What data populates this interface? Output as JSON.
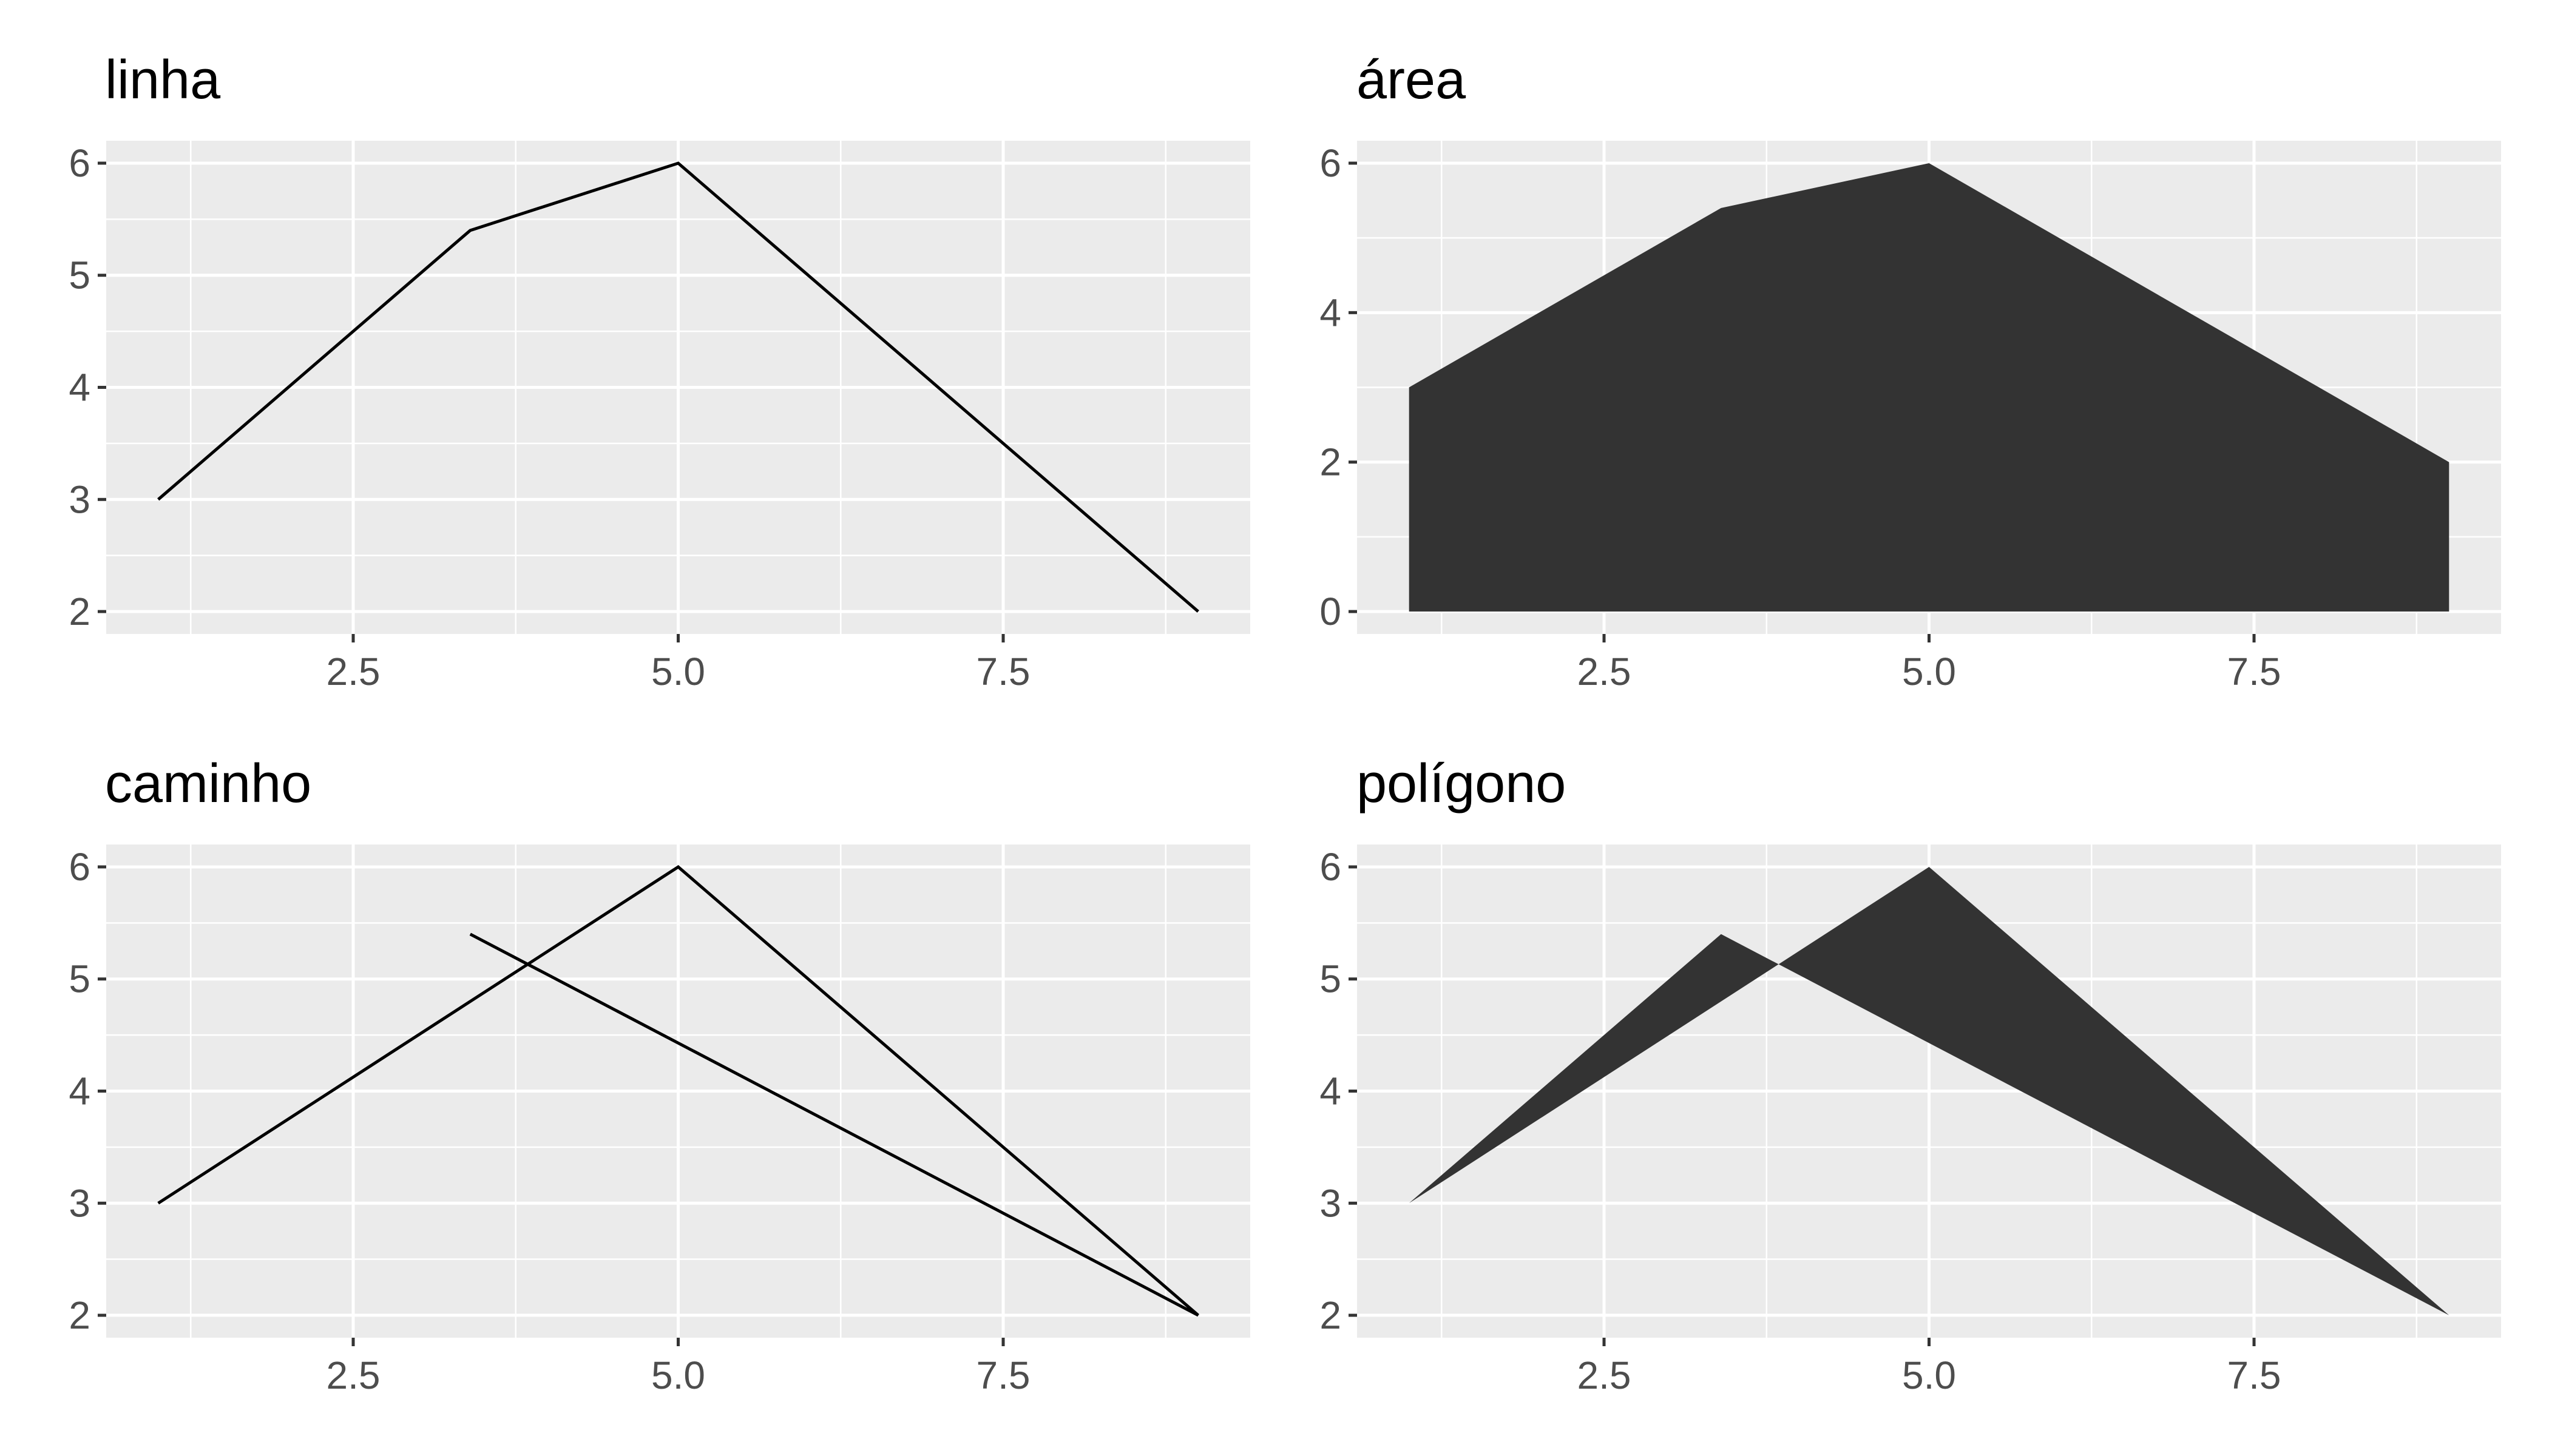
{
  "chart_data": [
    {
      "type": "line",
      "title": "linha",
      "xlabel": "",
      "ylabel": "",
      "x": [
        1.0,
        3.4,
        5.0,
        9.0
      ],
      "y": [
        3.0,
        5.4,
        6.0,
        2.0
      ],
      "xlim": [
        0.6,
        9.4
      ],
      "ylim": [
        1.8,
        6.2
      ],
      "xticks": [
        2.5,
        5.0,
        7.5
      ],
      "xtick_labels": [
        "2.5",
        "5.0",
        "7.5"
      ],
      "yticks": [
        2,
        3,
        4,
        5,
        6
      ],
      "ytick_labels": [
        "2",
        "3",
        "4",
        "5",
        "6"
      ],
      "grid": true,
      "colors": {
        "line": "#000000",
        "panel": "#ebebeb",
        "grid": "#ffffff"
      }
    },
    {
      "type": "area",
      "title": "área",
      "xlabel": "",
      "ylabel": "",
      "x": [
        1.0,
        3.4,
        5.0,
        9.0
      ],
      "y": [
        3.0,
        5.4,
        6.0,
        2.0
      ],
      "xlim": [
        0.6,
        9.4
      ],
      "ylim": [
        -0.3,
        6.3
      ],
      "xticks": [
        2.5,
        5.0,
        7.5
      ],
      "xtick_labels": [
        "2.5",
        "5.0",
        "7.5"
      ],
      "yticks": [
        0,
        2,
        4,
        6
      ],
      "ytick_labels": [
        "0",
        "2",
        "4",
        "6"
      ],
      "grid": true,
      "colors": {
        "fill": "#333333",
        "panel": "#ebebeb",
        "grid": "#ffffff"
      }
    },
    {
      "type": "line",
      "title": "caminho",
      "xlabel": "",
      "ylabel": "",
      "x": [
        1.0,
        5.0,
        9.0,
        3.4
      ],
      "y": [
        3.0,
        6.0,
        2.0,
        5.4
      ],
      "xlim": [
        0.6,
        9.4
      ],
      "ylim": [
        1.8,
        6.2
      ],
      "xticks": [
        2.5,
        5.0,
        7.5
      ],
      "xtick_labels": [
        "2.5",
        "5.0",
        "7.5"
      ],
      "yticks": [
        2,
        3,
        4,
        5,
        6
      ],
      "ytick_labels": [
        "2",
        "3",
        "4",
        "5",
        "6"
      ],
      "grid": true,
      "colors": {
        "line": "#000000",
        "panel": "#ebebeb",
        "grid": "#ffffff"
      }
    },
    {
      "type": "area",
      "title": "polígono",
      "xlabel": "",
      "ylabel": "",
      "x": [
        1.0,
        5.0,
        9.0,
        3.4
      ],
      "y": [
        3.0,
        6.0,
        2.0,
        5.4
      ],
      "xlim": [
        0.6,
        9.4
      ],
      "ylim": [
        1.8,
        6.2
      ],
      "xticks": [
        2.5,
        5.0,
        7.5
      ],
      "xtick_labels": [
        "2.5",
        "5.0",
        "7.5"
      ],
      "yticks": [
        2,
        3,
        4,
        5,
        6
      ],
      "ytick_labels": [
        "2",
        "3",
        "4",
        "5",
        "6"
      ],
      "grid": true,
      "colors": {
        "fill": "#333333",
        "panel": "#ebebeb",
        "grid": "#ffffff"
      }
    }
  ]
}
